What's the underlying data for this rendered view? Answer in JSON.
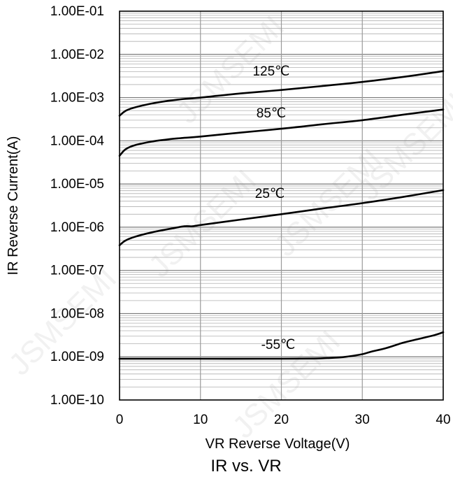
{
  "chart_data": {
    "type": "line",
    "title": "IR vs. VR",
    "xlabel": "VR Reverse Voltage(V)",
    "ylabel": "IR Reverse Current(A)",
    "xlim": [
      0,
      40
    ],
    "ylim": [
      1e-10,
      0.1
    ],
    "y_scale": "log",
    "grid": true,
    "x_ticks": [
      "0",
      "10",
      "20",
      "30",
      "40"
    ],
    "y_ticks": [
      "1.00E-01",
      "1.00E-02",
      "1.00E-03",
      "1.00E-04",
      "1.00E-05",
      "1.00E-06",
      "1.00E-07",
      "1.00E-08",
      "1.00E-09",
      "1.00E-10"
    ],
    "series": [
      {
        "name": "125℃",
        "x": [
          0,
          0.5,
          1,
          2,
          4,
          6,
          8,
          10,
          15,
          20,
          25,
          30,
          35,
          40
        ],
        "y": [
          0.00038,
          0.00046,
          0.00052,
          0.0006,
          0.00073,
          0.00084,
          0.00093,
          0.001,
          0.00125,
          0.0015,
          0.00185,
          0.0023,
          0.003,
          0.0041
        ]
      },
      {
        "name": "85℃",
        "x": [
          0,
          0.5,
          1,
          2,
          4,
          6,
          8,
          10,
          15,
          20,
          25,
          30,
          35,
          40
        ],
        "y": [
          4.5e-05,
          5.8e-05,
          6.8e-05,
          8e-05,
          9.6e-05,
          0.000108,
          0.000117,
          0.000125,
          0.000155,
          0.00019,
          0.00024,
          0.0003,
          0.0004,
          0.00053
        ]
      },
      {
        "name": "25℃",
        "x": [
          0,
          0.5,
          1,
          2,
          4,
          6,
          8,
          9,
          10,
          15,
          20,
          25,
          30,
          35,
          40
        ],
        "y": [
          3.8e-07,
          4.6e-07,
          5.2e-07,
          6.1e-07,
          7.6e-07,
          9e-07,
          1.05e-06,
          1.05e-06,
          1.12e-06,
          1.5e-06,
          2e-06,
          2.7e-06,
          3.6e-06,
          5e-06,
          7.2e-06
        ]
      },
      {
        "name": "-55℃",
        "x": [
          0,
          10,
          20,
          24,
          26,
          28,
          30,
          31,
          33,
          35,
          37,
          39,
          40
        ],
        "y": [
          9e-10,
          9e-10,
          9e-10,
          9.1e-10,
          9.4e-10,
          1e-09,
          1.15e-09,
          1.3e-09,
          1.6e-09,
          2.1e-09,
          2.6e-09,
          3.2e-09,
          3.7e-09
        ]
      }
    ],
    "watermark": "JSMSEMI"
  }
}
